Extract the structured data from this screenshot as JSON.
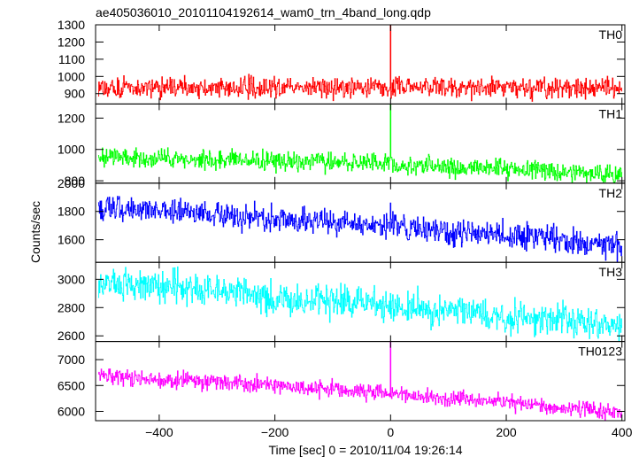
{
  "chart_data": {
    "type": "line",
    "title": "ae405036010_20101104192614_wam0_trn_4band_long.qdp",
    "xlabel": "Time [sec] 0 = 2010/11/04 19:26:14",
    "ylabel": "Counts/sec",
    "xlim": [
      -510,
      405
    ],
    "x_ticks": [
      -400,
      -200,
      0,
      200,
      400
    ],
    "x_tick_labels": [
      "−400",
      "−200",
      "0",
      "200",
      "400"
    ],
    "grid": false,
    "shared_x_axis": true,
    "panels": [
      {
        "name": "TH0",
        "color": "#ff0000",
        "ylim": [
          840,
          1300
        ],
        "y_ticks": [
          900,
          1000,
          1100,
          1200,
          1300
        ],
        "trend": [
          [
            -510,
            935
          ],
          [
            405,
            935
          ]
        ],
        "noise_sd": 30,
        "spike": {
          "x": 0,
          "y": 1300
        }
      },
      {
        "name": "TH1",
        "color": "#00ff00",
        "ylim": [
          785,
          1290
        ],
        "y_ticks": [
          800,
          1000,
          1200
        ],
        "trend": [
          [
            -510,
            960
          ],
          [
            -200,
            925
          ],
          [
            0,
            905
          ],
          [
            405,
            845
          ]
        ],
        "noise_sd": 30,
        "spike": {
          "x": 0,
          "y": 1285
        }
      },
      {
        "name": "TH2",
        "color": "#0000ff",
        "ylim": [
          1440,
          2000
        ],
        "y_ticks": [
          1600,
          1800,
          2000
        ],
        "trend": [
          [
            -510,
            1830
          ],
          [
            -200,
            1745
          ],
          [
            0,
            1700
          ],
          [
            405,
            1560
          ]
        ],
        "noise_sd": 45,
        "spike": {
          "x": 0,
          "y": 1860
        }
      },
      {
        "name": "TH3",
        "color": "#00ffff",
        "ylim": [
          2560,
          3120
        ],
        "y_ticks": [
          2600,
          2800,
          3000
        ],
        "trend": [
          [
            -510,
            2990
          ],
          [
            -200,
            2875
          ],
          [
            0,
            2810
          ],
          [
            405,
            2665
          ]
        ],
        "noise_sd": 55,
        "spike": {
          "x": 0,
          "y": 2900
        }
      },
      {
        "name": "TH0123",
        "color": "#ff00ff",
        "ylim": [
          5820,
          7350
        ],
        "y_ticks": [
          6000,
          6500,
          7000
        ],
        "trend": [
          [
            -510,
            6700
          ],
          [
            -200,
            6500
          ],
          [
            0,
            6350
          ],
          [
            405,
            5970
          ]
        ],
        "noise_sd": 75,
        "spike": {
          "x": 0,
          "y": 7350
        }
      }
    ]
  }
}
